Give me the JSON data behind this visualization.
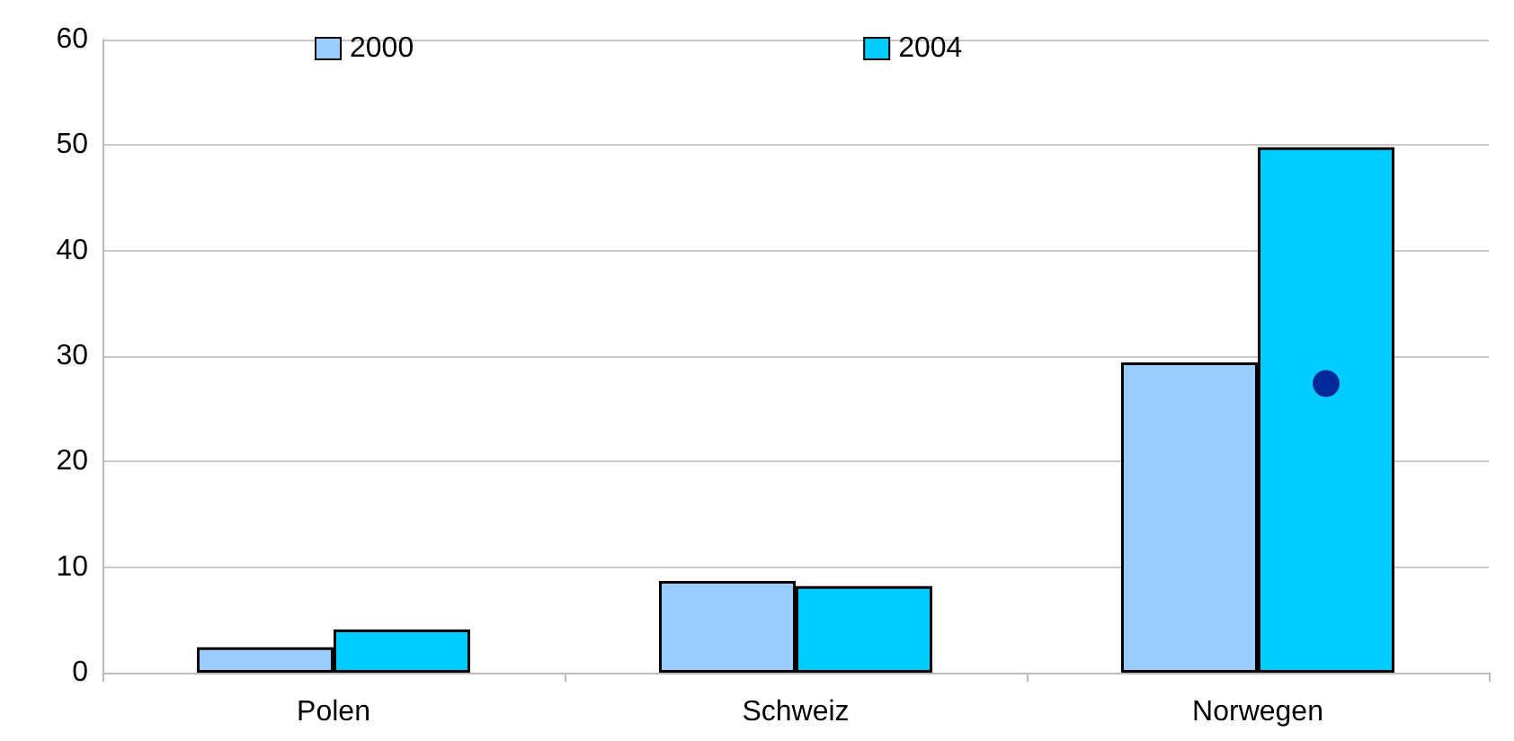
{
  "chart_data": {
    "type": "bar",
    "categories": [
      "Polen",
      "Schweiz",
      "Norwegen"
    ],
    "series": [
      {
        "name": "2000",
        "color": "#99ccff",
        "values": [
          2.4,
          8.7,
          29.4
        ]
      },
      {
        "name": "2004",
        "color": "#00ccff",
        "values": [
          4.1,
          8.2,
          49.8
        ]
      },
      {
        "type": "scatter",
        "color": "#000080",
        "x": [
          "Norwegen"
        ],
        "values": [
          27.4
        ],
        "marker": "circle"
      }
    ],
    "ylim": [
      0,
      60
    ],
    "yticks": [
      0,
      10,
      20,
      30,
      40,
      50,
      60
    ],
    "grid": "y",
    "legend": "top"
  }
}
